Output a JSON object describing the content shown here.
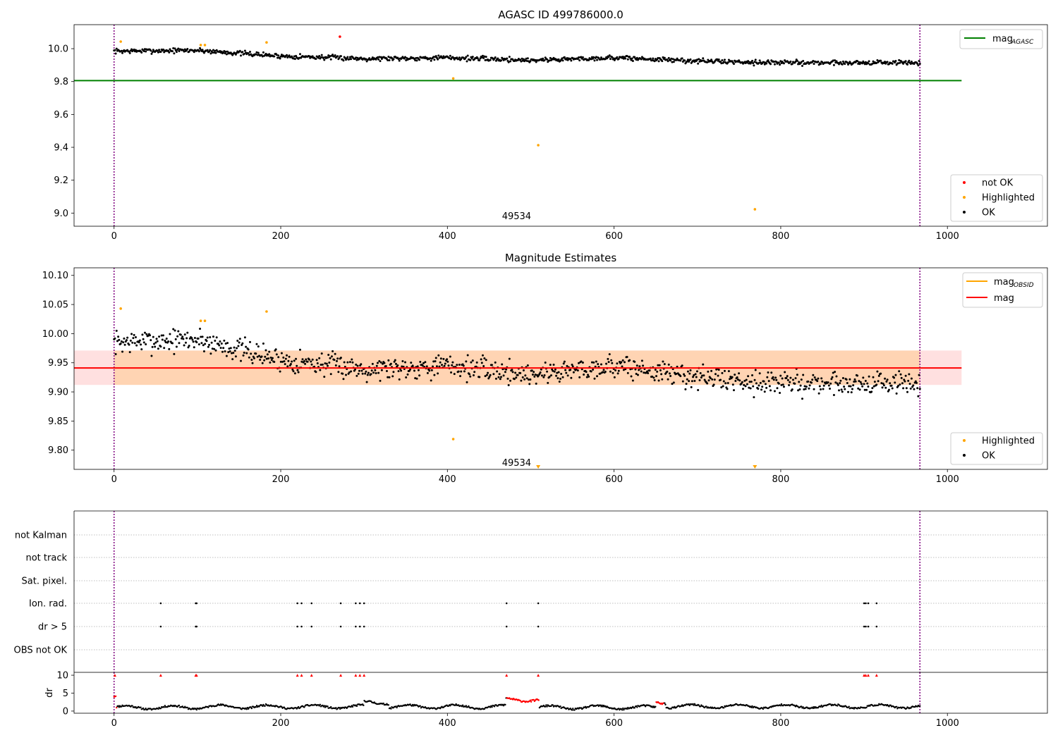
{
  "chart_data": [
    {
      "id": "agasc",
      "type": "scatter",
      "title": "AGASC ID 499786000.0",
      "xlim": [
        -48,
        1120
      ],
      "ylim": [
        8.92,
        10.146
      ],
      "xticks": [
        0,
        200,
        400,
        600,
        800,
        1000
      ],
      "yticks": [
        9.0,
        9.2,
        9.4,
        9.6,
        9.8,
        10.0
      ],
      "ytick_labels": [
        "9.0",
        "9.2",
        "9.4",
        "9.6",
        "9.8",
        "10.0"
      ],
      "vlines": [
        0,
        967
      ],
      "hline": {
        "name": "mag_AGASC",
        "value": 9.806,
        "x": [
          -48,
          1017
        ],
        "color": "#008000"
      },
      "obsid_annotation": {
        "text": "49534",
        "x": 483,
        "y": 8.98
      },
      "noise_model": {
        "start": 0,
        "end": 967,
        "n": 967,
        "amplitude": 0.022,
        "seed": 7,
        "trend": [
          [
            0,
            9.985
          ],
          [
            100,
            9.99
          ],
          [
            200,
            9.955
          ],
          [
            300,
            9.94
          ],
          [
            400,
            9.945
          ],
          [
            500,
            9.93
          ],
          [
            600,
            9.945
          ],
          [
            700,
            9.925
          ],
          [
            800,
            9.915
          ],
          [
            900,
            9.915
          ],
          [
            967,
            9.915
          ]
        ]
      },
      "series": [
        {
          "name": "not OK",
          "color": "#ff0000",
          "points": [
            [
              271,
              10.073
            ]
          ]
        },
        {
          "name": "Highlighted",
          "color": "#ffa500",
          "points": [
            [
              8,
              10.043
            ],
            [
              104,
              10.022
            ],
            [
              109,
              10.022
            ],
            [
              183,
              10.038
            ],
            [
              407,
              9.819
            ],
            [
              509,
              9.413
            ],
            [
              769,
              9.023
            ]
          ]
        },
        {
          "name": "OK",
          "color": "#000000",
          "points": "generated"
        }
      ],
      "legend_lines": [
        {
          "label_main": "mag",
          "label_sub": "AGASC",
          "color": "#008000"
        }
      ],
      "legend_points": [
        {
          "label": "not OK",
          "color": "#ff0000"
        },
        {
          "label": "Highlighted",
          "color": "#ffa500"
        },
        {
          "label": "OK",
          "color": "#000000"
        }
      ]
    },
    {
      "id": "estimates",
      "type": "scatter",
      "title": "Magnitude Estimates",
      "xlim": [
        -48,
        1120
      ],
      "ylim": [
        9.767,
        10.113
      ],
      "xticks": [
        0,
        200,
        400,
        600,
        800,
        1000
      ],
      "yticks": [
        9.8,
        9.85,
        9.9,
        9.95,
        10.0,
        10.05,
        10.1
      ],
      "ytick_labels": [
        "9.80",
        "9.85",
        "9.90",
        "9.95",
        "10.00",
        "10.05",
        "10.10"
      ],
      "vlines": [
        0,
        967
      ],
      "mag_line": {
        "name": "mag",
        "value": 9.941,
        "band": [
          9.912,
          9.971
        ],
        "x": [
          -48,
          1017
        ],
        "color": "#ff0000"
      },
      "obsid_band": {
        "name": "mag_OBSID",
        "value": 9.941,
        "band": [
          9.912,
          9.971
        ],
        "x": [
          0,
          967
        ],
        "color": "#ffa500"
      },
      "obsid_annotation": {
        "text": "49534",
        "x": 483,
        "y": 9.778
      },
      "noise_model": {
        "start": 0,
        "end": 967,
        "n": 967,
        "amplitude": 0.03,
        "seed": 7,
        "trend": [
          [
            0,
            9.985
          ],
          [
            100,
            9.99
          ],
          [
            200,
            9.955
          ],
          [
            300,
            9.94
          ],
          [
            400,
            9.945
          ],
          [
            500,
            9.93
          ],
          [
            600,
            9.945
          ],
          [
            700,
            9.925
          ],
          [
            800,
            9.915
          ],
          [
            900,
            9.915
          ],
          [
            967,
            9.915
          ]
        ]
      },
      "series": [
        {
          "name": "Highlighted",
          "color": "#ffa500",
          "points": [
            [
              8,
              10.043
            ],
            [
              104,
              10.022
            ],
            [
              109,
              10.022
            ],
            [
              183,
              10.038
            ],
            [
              407,
              9.819
            ]
          ]
        },
        {
          "name": "OK",
          "color": "#000000",
          "points": "generated"
        },
        {
          "name": "out-of-range (below)",
          "color": "#ffa500",
          "points": [
            [
              509,
              9.767
            ],
            [
              769,
              9.767
            ]
          ]
        }
      ],
      "legend_lines": [
        {
          "label_main": "mag",
          "label_sub": "OBSID",
          "color": "#ffa500"
        },
        {
          "label_main": "mag",
          "label_sub": "",
          "color": "#ff0000"
        }
      ],
      "legend_points": [
        {
          "label": "Highlighted",
          "color": "#ffa500"
        },
        {
          "label": "OK",
          "color": "#000000"
        }
      ]
    },
    {
      "id": "flags",
      "type": "scatter",
      "xlim": [
        -48,
        1120
      ],
      "categories": [
        "not Kalman",
        "not track",
        "Sat. pixel.",
        "Ion. rad.",
        "dr > 5",
        "OBS not OK"
      ],
      "flagged_x": {
        "Ion. rad.": [
          56,
          98,
          99,
          220,
          225,
          237,
          272,
          290,
          295,
          300,
          471,
          509,
          900,
          902,
          905,
          915
        ],
        "dr > 5": [
          56,
          98,
          99,
          220,
          225,
          237,
          272,
          290,
          295,
          300,
          471,
          509,
          900,
          902,
          905,
          915
        ]
      },
      "vlines": [
        0,
        967
      ]
    },
    {
      "id": "dr",
      "type": "scatter",
      "ylabel": "dr",
      "xlim": [
        -48,
        1120
      ],
      "ylim": [
        -0.6,
        10.8
      ],
      "xticks": [
        0,
        200,
        400,
        600,
        800,
        1000
      ],
      "yticks": [
        0,
        5,
        10
      ],
      "ytick_labels": [
        "0",
        "5",
        "10"
      ],
      "vlines": [
        0,
        967
      ],
      "high_points_y": 10,
      "high_points_x": [
        1,
        56,
        98,
        99,
        220,
        225,
        237,
        272,
        290,
        295,
        300,
        471,
        509,
        900,
        902,
        905,
        915
      ],
      "red_segments": [
        [
          0,
          4
        ],
        [
          471,
          510
        ],
        [
          650,
          660
        ]
      ],
      "noise_model": {
        "start": 0,
        "end": 967,
        "n": 967,
        "seed": 11,
        "levels": [
          [
            0,
            4.1
          ],
          [
            3,
            1.0
          ],
          [
            100,
            1.2
          ],
          [
            300,
            2.4
          ],
          [
            330,
            1.2
          ],
          [
            470,
            3.2
          ],
          [
            510,
            1.0
          ],
          [
            650,
            2.5
          ],
          [
            662,
            1.3
          ],
          [
            967,
            1.2
          ]
        ]
      }
    }
  ]
}
